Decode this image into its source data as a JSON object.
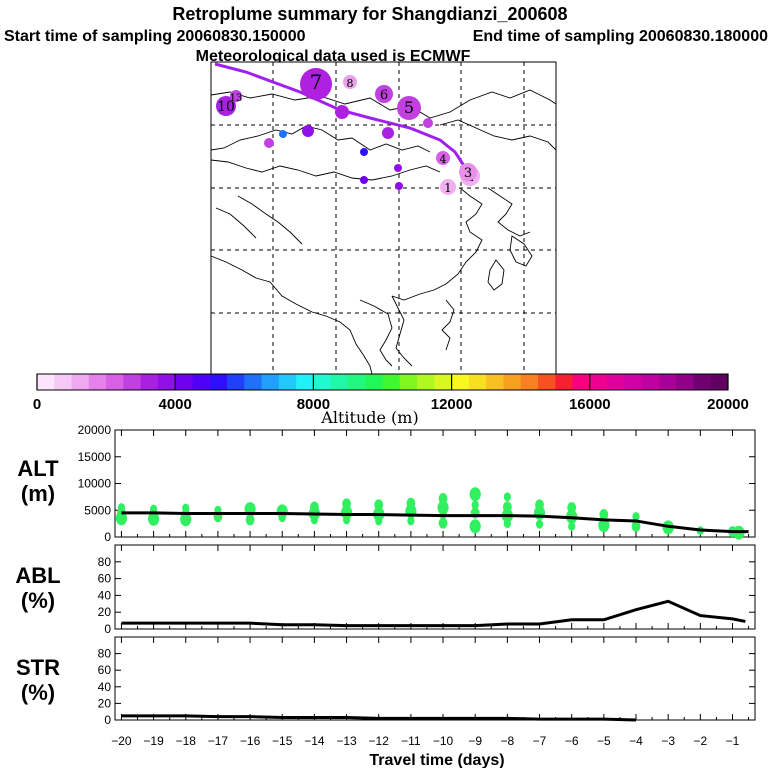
{
  "header": {
    "title": "Retroplume summary for Shangdianzi_200608",
    "start_label": "Start time of sampling 20060830.150000",
    "end_label": "End time of sampling 20060830.180000",
    "met_label": "Meteorological data used is ECMWF"
  },
  "colorbar": {
    "label": "Altitude (m)",
    "tick_labels": [
      "0",
      "4000",
      "8000",
      "12000",
      "16000",
      "20000"
    ],
    "colors": [
      "#fce4fc",
      "#f6c8f6",
      "#f0a8f0",
      "#e680ea",
      "#d860e6",
      "#c040e0",
      "#a820e0",
      "#9010e8",
      "#7000f0",
      "#5000f8",
      "#3010fc",
      "#2040fc",
      "#2070fc",
      "#20a0fc",
      "#20c8fc",
      "#20f0f8",
      "#20f8d0",
      "#20f8a8",
      "#20f880",
      "#20f858",
      "#40f830",
      "#80f820",
      "#b0f820",
      "#d8f820",
      "#f8f820",
      "#f8e020",
      "#f8c020",
      "#f8a020",
      "#f88020",
      "#f85020",
      "#f82030",
      "#f80080",
      "#f00090",
      "#e0009c",
      "#d000a4",
      "#c000a0",
      "#a80098",
      "#900088",
      "#700070",
      "#600060"
    ]
  },
  "map": {
    "track_points": [
      {
        "label": "1",
        "color": "#f0b0f0",
        "size": 8
      },
      {
        "label": "2",
        "color": "#f0b0f0",
        "size": 10
      },
      {
        "label": "3",
        "color": "#e890ea",
        "size": 9
      },
      {
        "label": "4",
        "color": "#d860e6",
        "size": 7
      },
      {
        "label": "5",
        "color": "#c040e0",
        "size": 12
      },
      {
        "label": "6",
        "color": "#c040e0",
        "size": 9
      },
      {
        "label": "7",
        "color": "#b020e0",
        "size": 16
      },
      {
        "label": "8",
        "color": "#e8a0ea",
        "size": 7
      },
      {
        "label": "10",
        "color": "#a820e0",
        "size": 10
      },
      {
        "label": "13",
        "color": "#c040e0",
        "size": 6
      }
    ]
  },
  "chart_data": [
    {
      "type": "scatter",
      "panel": "ALT",
      "ylabel_line1": "ALT",
      "ylabel_line2": "(m)",
      "ylim": [
        0,
        20000
      ],
      "yticks": [
        "0",
        "5000",
        "10000",
        "15000",
        "20000"
      ],
      "xlim": [
        -20,
        -0.5
      ],
      "mean_line": {
        "x": [
          -20,
          -19,
          -18,
          -17,
          -16,
          -15,
          -14,
          -13,
          -12,
          -11,
          -10,
          -9,
          -8,
          -7,
          -6,
          -5,
          -4,
          -3,
          -2,
          -1,
          -0.5
        ],
        "y": [
          4500,
          4500,
          4400,
          4400,
          4400,
          4400,
          4300,
          4200,
          4200,
          4100,
          4000,
          4000,
          4000,
          3900,
          3600,
          3200,
          3000,
          2000,
          1300,
          1000,
          1000
        ]
      },
      "scatter_series": {
        "name": "particle altitudes",
        "x": [
          -20,
          -20,
          -20,
          -19,
          -19,
          -19,
          -18,
          -18,
          -18,
          -17,
          -17,
          -16,
          -16,
          -16,
          -15,
          -15,
          -14,
          -14,
          -14,
          -13,
          -13,
          -13,
          -12,
          -12,
          -12,
          -11,
          -11,
          -11,
          -10,
          -10,
          -10,
          -10,
          -9,
          -9,
          -9,
          -9,
          -8,
          -8,
          -8,
          -8,
          -7,
          -7,
          -7,
          -6,
          -6,
          -6,
          -5,
          -5,
          -4,
          -4,
          -3,
          -2,
          -1,
          -0.8
        ],
        "y": [
          5500,
          4500,
          3500,
          5200,
          4300,
          3400,
          5400,
          4200,
          3300,
          5000,
          3800,
          5200,
          4200,
          3200,
          4800,
          3600,
          5600,
          4400,
          3200,
          6200,
          4600,
          3200,
          6000,
          4300,
          3000,
          6300,
          4800,
          3000,
          7200,
          5500,
          4200,
          2600,
          8000,
          6000,
          4500,
          2000,
          7500,
          5600,
          4000,
          2500,
          6000,
          4500,
          2400,
          5500,
          3800,
          2000,
          4200,
          2200,
          3800,
          2000,
          1800,
          1200,
          1000,
          800
        ]
      }
    },
    {
      "type": "line",
      "panel": "ABL",
      "ylabel_line1": "ABL",
      "ylabel_line2": "(%)",
      "ylim": [
        0,
        100
      ],
      "yticks": [
        "0",
        "20",
        "40",
        "60",
        "80"
      ],
      "x": [
        -20,
        -19,
        -18,
        -17,
        -16,
        -15,
        -14,
        -13,
        -12,
        -11,
        -10,
        -9,
        -8,
        -7,
        -6,
        -5,
        -4,
        -3,
        -2,
        -1,
        -0.6
      ],
      "y": [
        7,
        7,
        7,
        7,
        7,
        5,
        5,
        4,
        4,
        4,
        4,
        4,
        6,
        6,
        11,
        11,
        23,
        33,
        16,
        12,
        9
      ]
    },
    {
      "type": "line",
      "panel": "STR",
      "ylabel_line1": "STR",
      "ylabel_line2": "(%)",
      "ylim": [
        0,
        100
      ],
      "yticks": [
        "0",
        "20",
        "40",
        "60",
        "80"
      ],
      "x": [
        -20,
        -19,
        -18,
        -17,
        -16,
        -15,
        -14,
        -13,
        -12,
        -11,
        -10,
        -9,
        -8,
        -7,
        -6,
        -5,
        -4
      ],
      "y": [
        5,
        5,
        5,
        4,
        4,
        3,
        3,
        3,
        2,
        2,
        2,
        2,
        2,
        1,
        1,
        1,
        0
      ],
      "xlabel": "Travel time (days)",
      "xticks": [
        "−20",
        "−19",
        "−18",
        "−17",
        "−16",
        "−15",
        "−14",
        "−13",
        "−12",
        "−11",
        "−10",
        "−9",
        "−8",
        "−7",
        "−6",
        "−5",
        "−4",
        "−3",
        "−2",
        "−1"
      ]
    }
  ]
}
